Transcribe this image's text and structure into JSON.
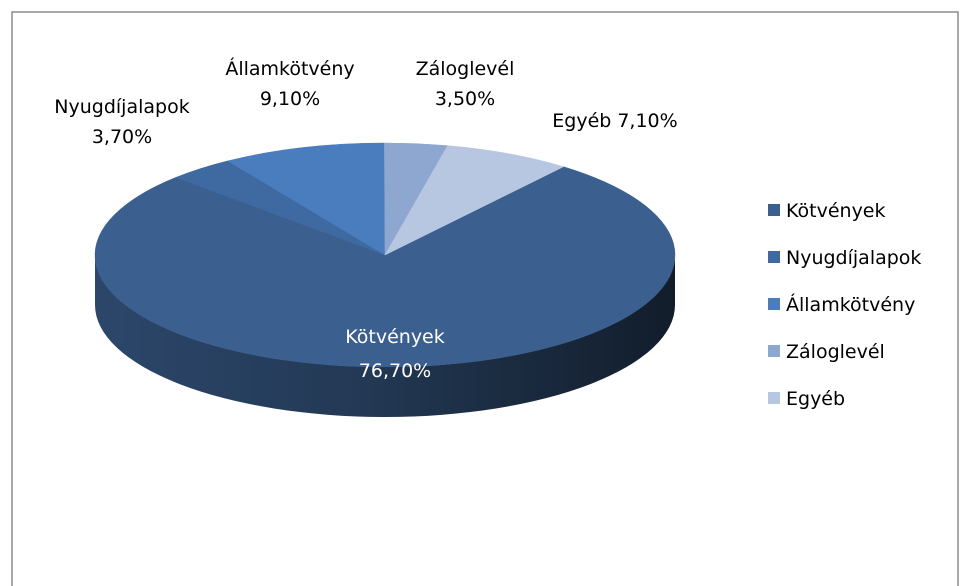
{
  "chart_data": {
    "type": "pie3d",
    "categories": [
      "Kötvények",
      "Nyugdíjalapok",
      "Államkötvény",
      "Záloglevél",
      "Egyéb"
    ],
    "values": [
      76.7,
      3.7,
      9.1,
      3.5,
      7.1
    ],
    "value_labels": [
      "76,70%",
      "3,70%",
      "9,10%",
      "3,50%",
      "7,10%"
    ],
    "colors": [
      "#3b5f8e",
      "#3e69a1",
      "#4a7dbd",
      "#8ea7d0",
      "#b8c7e1"
    ],
    "start_angle": 38,
    "legend": "right"
  }
}
